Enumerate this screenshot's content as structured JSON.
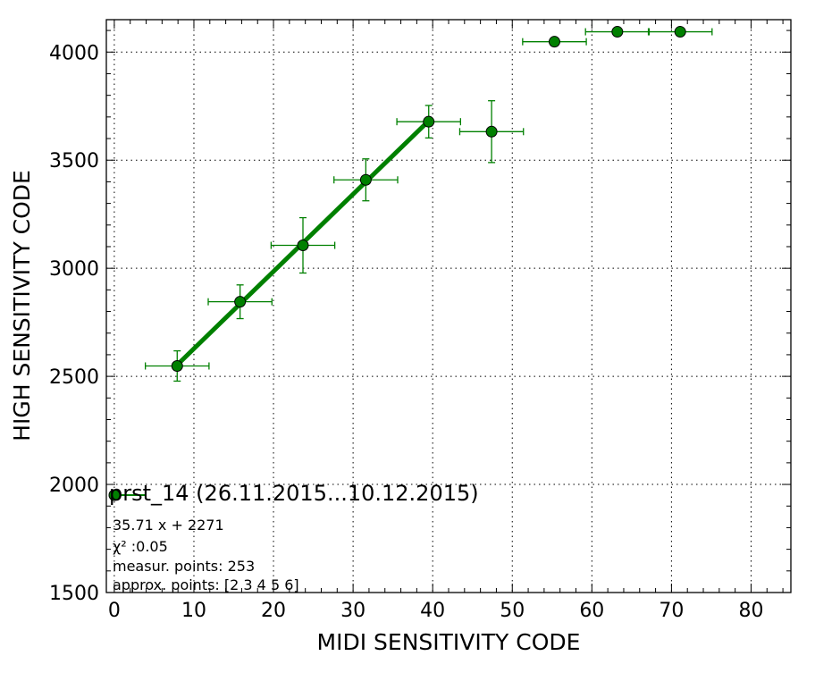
{
  "chart_data": {
    "type": "scatter",
    "xlabel": "MIDI SENSITIVITY CODE",
    "ylabel": "HIGH SENSITIVITY CODE",
    "xlim": [
      -1,
      85
    ],
    "ylim": [
      1500,
      4150
    ],
    "xticks": [
      0,
      10,
      20,
      30,
      40,
      50,
      60,
      70,
      80
    ],
    "yticks": [
      1500,
      2000,
      2500,
      3000,
      3500,
      4000
    ],
    "grid": true,
    "colors": {
      "marker": "#008000",
      "marker_edge": "#000000",
      "fit_line": "#008000",
      "errorbar": "#008000"
    },
    "series": [
      {
        "name": "prst_14 (26.11.2015...10.12.2015)",
        "points": [
          {
            "x": 7.9,
            "y": 2548,
            "xerr": 4.0,
            "yerr": 70
          },
          {
            "x": 15.8,
            "y": 2845,
            "xerr": 4.0,
            "yerr": 78
          },
          {
            "x": 23.7,
            "y": 3106,
            "xerr": 4.0,
            "yerr": 128
          },
          {
            "x": 31.6,
            "y": 3409,
            "xerr": 4.0,
            "yerr": 97
          },
          {
            "x": 39.5,
            "y": 3678,
            "xerr": 4.0,
            "yerr": 75
          },
          {
            "x": 47.4,
            "y": 3632,
            "xerr": 4.0,
            "yerr": 143
          },
          {
            "x": 55.3,
            "y": 4048,
            "xerr": 4.0,
            "yerr": 0
          },
          {
            "x": 63.2,
            "y": 4094,
            "xerr": 4.0,
            "yerr": 0
          },
          {
            "x": 71.1,
            "y": 4094,
            "xerr": 4.0,
            "yerr": 0
          }
        ]
      }
    ],
    "fit": {
      "x": [
        7.9,
        39.5
      ],
      "y": [
        2553,
        3682
      ]
    },
    "legend_location": "lower-left",
    "annotations": [
      "35.71 x + 2271",
      "χ² :0.05",
      "measur. points: 253",
      "approx. points: [2 3 4 5 6]"
    ]
  }
}
